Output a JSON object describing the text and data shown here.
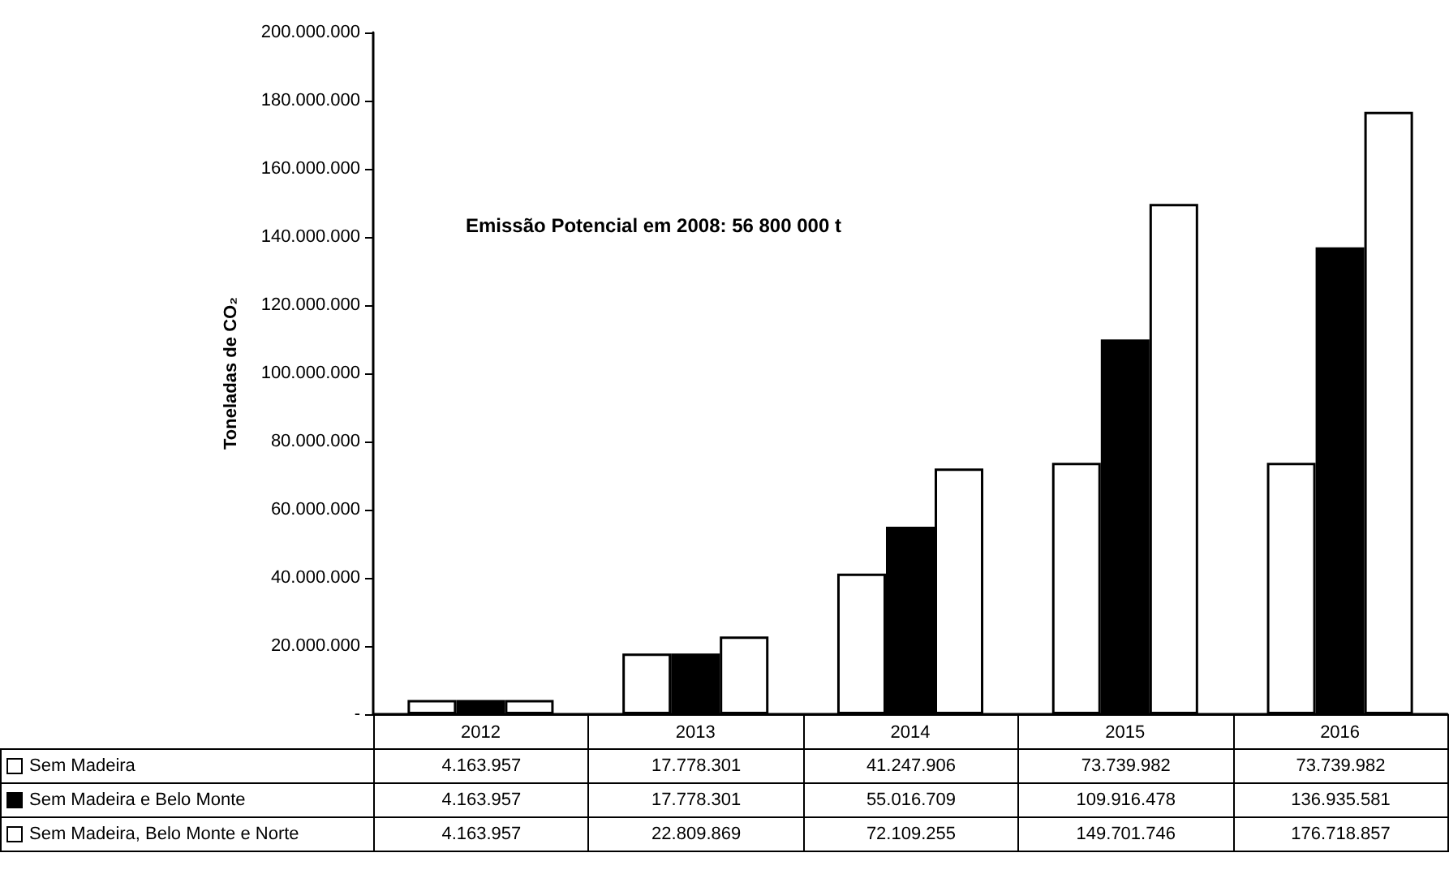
{
  "chart_data": {
    "type": "bar",
    "ylabel": "Toneladas de CO₂",
    "categories": [
      "2012",
      "2013",
      "2014",
      "2015",
      "2016"
    ],
    "series": [
      {
        "name": "Sem Madeira",
        "color": "#ffffff",
        "values": [
          4163957,
          17778301,
          41247906,
          73739982,
          73739982
        ],
        "value_labels": [
          "4.163.957",
          "17.778.301",
          "41.247.906",
          "73.739.982",
          "73.739.982"
        ]
      },
      {
        "name": "Sem Madeira e Belo Monte",
        "color": "#000000",
        "values": [
          4163957,
          17778301,
          55016709,
          109916478,
          136935581
        ],
        "value_labels": [
          "4.163.957",
          "17.778.301",
          "55.016.709",
          "109.916.478",
          "136.935.581"
        ]
      },
      {
        "name": "Sem Madeira, Belo Monte e Norte",
        "color": "#ffffff",
        "values": [
          4163957,
          22809869,
          72109255,
          149701746,
          176718857
        ],
        "value_labels": [
          "4.163.957",
          "22.809.869",
          "72.109.255",
          "149.701.746",
          "176.718.857"
        ]
      }
    ],
    "ylim": [
      0,
      200000000
    ],
    "yticks": [
      {
        "value": 0,
        "label": "-"
      },
      {
        "value": 20000000,
        "label": "20.000.000"
      },
      {
        "value": 40000000,
        "label": "40.000.000"
      },
      {
        "value": 60000000,
        "label": "60.000.000"
      },
      {
        "value": 80000000,
        "label": "80.000.000"
      },
      {
        "value": 100000000,
        "label": "100.000.000"
      },
      {
        "value": 120000000,
        "label": "120.000.000"
      },
      {
        "value": 140000000,
        "label": "140.000.000"
      },
      {
        "value": 160000000,
        "label": "160.000.000"
      },
      {
        "value": 180000000,
        "label": "180.000.000"
      },
      {
        "value": 200000000,
        "label": "200.000.000"
      }
    ],
    "annotations": [
      "Emissão Potencial em 2008: 56 800 000 t"
    ],
    "grid": false,
    "legend": "bottom"
  }
}
